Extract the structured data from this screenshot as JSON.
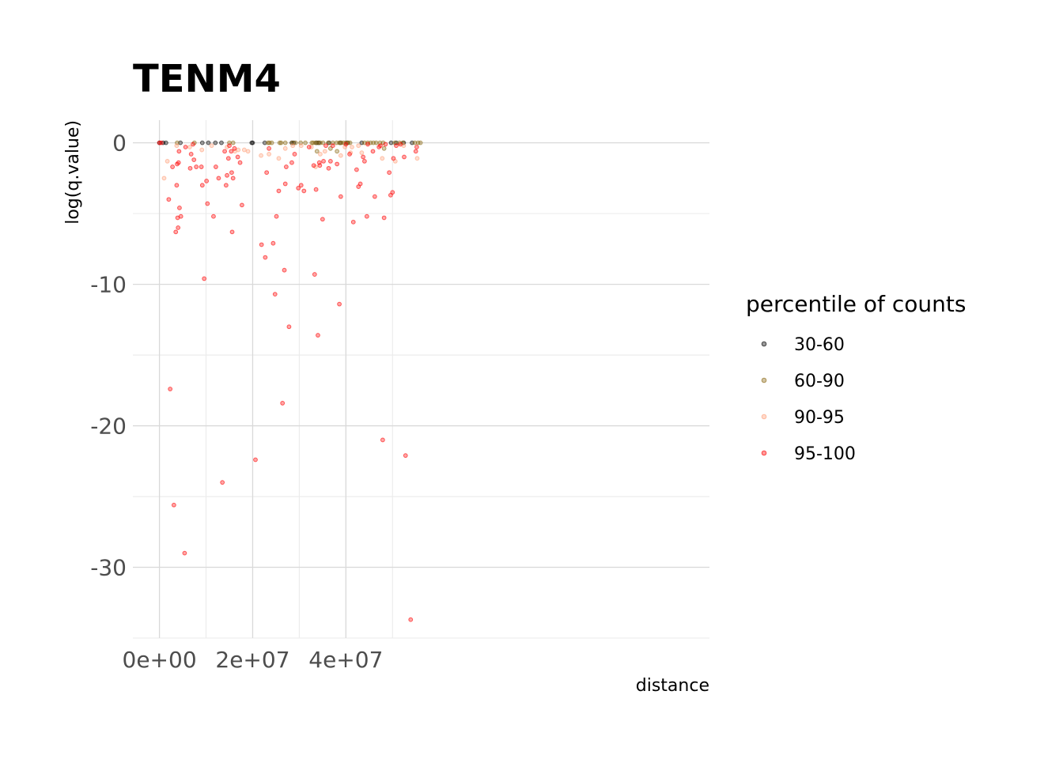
{
  "chart_data": {
    "type": "scatter",
    "title": "TENM4",
    "xlabel": "distance",
    "ylabel": "log(q.value)",
    "xlim": [
      -5700000,
      118000000
    ],
    "ylim": [
      -35,
      1.6
    ],
    "x_ticks": [
      0,
      20000000,
      40000000
    ],
    "x_tick_labels": [
      "0e+00",
      "2e+07",
      "4e+07"
    ],
    "y_ticks": [
      0,
      -10,
      -20,
      -30
    ],
    "y_tick_labels": [
      "0",
      "-10",
      "-20",
      "-30"
    ],
    "grid": true,
    "legend_position": "right",
    "legend_title": "percentile of counts",
    "series": [
      {
        "name": "30-60",
        "color": "#000000",
        "points": [
          [
            0,
            0
          ],
          [
            800000,
            0
          ],
          [
            1400000,
            0
          ],
          [
            4500000,
            0
          ],
          [
            9200000,
            0
          ],
          [
            10500000,
            0
          ],
          [
            12000000,
            0
          ],
          [
            13300000,
            0
          ],
          [
            19800000,
            0
          ],
          [
            20000000,
            0
          ],
          [
            22600000,
            0
          ],
          [
            28400000,
            0
          ],
          [
            28800000,
            0
          ],
          [
            33700000,
            0
          ],
          [
            34200000,
            0
          ],
          [
            36400000,
            0
          ],
          [
            38800000,
            0
          ],
          [
            40300000,
            0
          ],
          [
            43400000,
            0
          ],
          [
            49700000,
            0
          ],
          [
            50800000,
            0
          ],
          [
            52400000,
            0
          ],
          [
            54200000,
            0
          ]
        ]
      },
      {
        "name": "60-90",
        "color": "#8b6914",
        "points": [
          [
            3800000,
            0
          ],
          [
            7500000,
            0
          ],
          [
            15000000,
            0
          ],
          [
            15800000,
            0
          ],
          [
            23300000,
            0
          ],
          [
            23600000,
            0
          ],
          [
            24100000,
            0
          ],
          [
            25800000,
            0
          ],
          [
            26100000,
            0
          ],
          [
            27000000,
            0
          ],
          [
            28500000,
            0
          ],
          [
            29200000,
            0
          ],
          [
            30300000,
            0
          ],
          [
            31300000,
            0
          ],
          [
            32700000,
            0
          ],
          [
            33000000,
            0
          ],
          [
            33500000,
            0
          ],
          [
            34000000,
            0
          ],
          [
            34500000,
            0
          ],
          [
            35100000,
            0
          ],
          [
            36200000,
            0
          ],
          [
            37200000,
            0
          ],
          [
            38000000,
            0
          ],
          [
            38600000,
            0
          ],
          [
            39000000,
            0
          ],
          [
            39500000,
            0
          ],
          [
            40000000,
            0
          ],
          [
            40500000,
            0
          ],
          [
            40900000,
            0
          ],
          [
            44000000,
            0
          ],
          [
            44700000,
            0
          ],
          [
            45300000,
            0
          ],
          [
            45900000,
            0
          ],
          [
            46500000,
            0
          ],
          [
            47300000,
            0
          ],
          [
            48000000,
            0
          ],
          [
            50500000,
            0
          ],
          [
            51500000,
            0
          ],
          [
            52200000,
            0
          ],
          [
            54800000,
            0
          ],
          [
            55500000,
            0
          ],
          [
            56000000,
            0
          ],
          [
            33800000,
            -0.6
          ],
          [
            36700000,
            -0.4
          ],
          [
            38100000,
            -0.6
          ],
          [
            48200000,
            -0.4
          ]
        ]
      },
      {
        "name": "90-95",
        "color": "#ffa07a",
        "points": [
          [
            1000000,
            -2.5
          ],
          [
            1700000,
            -1.3
          ],
          [
            3700000,
            -0.2
          ],
          [
            6500000,
            -0.3
          ],
          [
            9100000,
            -0.5
          ],
          [
            11200000,
            -0.2
          ],
          [
            14500000,
            -0.3
          ],
          [
            16200000,
            -0.6
          ],
          [
            16900000,
            -0.5
          ],
          [
            18200000,
            -0.5
          ],
          [
            19000000,
            -0.6
          ],
          [
            21800000,
            -0.9
          ],
          [
            23500000,
            -0.8
          ],
          [
            25600000,
            -1.1
          ],
          [
            27000000,
            -0.4
          ],
          [
            28600000,
            -0.2
          ],
          [
            30400000,
            -0.2
          ],
          [
            32600000,
            -0.3
          ],
          [
            33500000,
            -1.7
          ],
          [
            34500000,
            -0.8
          ],
          [
            35500000,
            -0.6
          ],
          [
            38900000,
            -0.9
          ],
          [
            39800000,
            -0.3
          ],
          [
            41000000,
            -0.7
          ],
          [
            41300000,
            -0.3
          ],
          [
            42700000,
            -0.2
          ],
          [
            43400000,
            -0.7
          ],
          [
            47800000,
            -1.1
          ],
          [
            50600000,
            -1.3
          ],
          [
            52400000,
            -0.2
          ],
          [
            55300000,
            -1.1
          ]
        ]
      },
      {
        "name": "95-100",
        "color": "#ff0000",
        "points": [
          [
            0,
            0
          ],
          [
            400000,
            0
          ],
          [
            2000000,
            -4
          ],
          [
            2300000,
            -17.4
          ],
          [
            2800000,
            -1.7
          ],
          [
            3100000,
            -25.6
          ],
          [
            3500000,
            -6.3
          ],
          [
            3700000,
            -3.0
          ],
          [
            3800000,
            -1.5
          ],
          [
            3900000,
            -5.3
          ],
          [
            4000000,
            -6.0
          ],
          [
            4200000,
            -0.6
          ],
          [
            4300000,
            -4.6
          ],
          [
            4600000,
            -5.2
          ],
          [
            4100000,
            -1.4
          ],
          [
            5400000,
            -29.0
          ],
          [
            5600000,
            -0.3
          ],
          [
            6600000,
            -1.8
          ],
          [
            6800000,
            -0.8
          ],
          [
            7200000,
            -0.1
          ],
          [
            7400000,
            -1.2
          ],
          [
            7900000,
            -1.7
          ],
          [
            9000000,
            -1.7
          ],
          [
            9200000,
            -3.0
          ],
          [
            9600000,
            -9.6
          ],
          [
            10100000,
            -2.7
          ],
          [
            10300000,
            -4.3
          ],
          [
            11600000,
            -5.2
          ],
          [
            12100000,
            -1.7
          ],
          [
            12700000,
            -2.5
          ],
          [
            13500000,
            -24.0
          ],
          [
            14000000,
            -0.6
          ],
          [
            14300000,
            -3.0
          ],
          [
            14500000,
            -2.3
          ],
          [
            14800000,
            -1.1
          ],
          [
            15000000,
            -0.2
          ],
          [
            15400000,
            -0.6
          ],
          [
            15500000,
            -2.1
          ],
          [
            15600000,
            -6.3
          ],
          [
            15800000,
            -2.5
          ],
          [
            16100000,
            -0.4
          ],
          [
            16800000,
            -1.0
          ],
          [
            17300000,
            -1.4
          ],
          [
            17700000,
            -4.4
          ],
          [
            20600000,
            -22.4
          ],
          [
            21900000,
            -7.2
          ],
          [
            22700000,
            -8.1
          ],
          [
            23000000,
            -2.1
          ],
          [
            23500000,
            -0.4
          ],
          [
            24400000,
            -7.1
          ],
          [
            24800000,
            -10.7
          ],
          [
            25100000,
            -5.2
          ],
          [
            25600000,
            -3.4
          ],
          [
            26400000,
            -18.4
          ],
          [
            26800000,
            -9.0
          ],
          [
            27000000,
            -2.9
          ],
          [
            27200000,
            -1.7
          ],
          [
            27800000,
            -13.0
          ],
          [
            28400000,
            -1.4
          ],
          [
            29000000,
            -0.8
          ],
          [
            29800000,
            -3.2
          ],
          [
            30400000,
            -3.0
          ],
          [
            31000000,
            -3.4
          ],
          [
            32100000,
            -0.3
          ],
          [
            33100000,
            -1.6
          ],
          [
            33300000,
            -9.3
          ],
          [
            33600000,
            -3.3
          ],
          [
            34000000,
            -13.6
          ],
          [
            34300000,
            -1.4
          ],
          [
            34400000,
            -1.6
          ],
          [
            35000000,
            -5.4
          ],
          [
            35200000,
            -1.3
          ],
          [
            35700000,
            -0.2
          ],
          [
            36300000,
            -1.8
          ],
          [
            36700000,
            -1.3
          ],
          [
            37200000,
            -0.2
          ],
          [
            38100000,
            -1.5
          ],
          [
            38600000,
            -11.4
          ],
          [
            38900000,
            -3.8
          ],
          [
            40000000,
            -0.1
          ],
          [
            40800000,
            -0.8
          ],
          [
            41600000,
            -5.6
          ],
          [
            42300000,
            -1.9
          ],
          [
            42700000,
            -3.1
          ],
          [
            43100000,
            -2.9
          ],
          [
            43700000,
            -1.0
          ],
          [
            44000000,
            -1.3
          ],
          [
            44700000,
            -0.1
          ],
          [
            44500000,
            -5.2
          ],
          [
            45800000,
            -0.6
          ],
          [
            46200000,
            -3.8
          ],
          [
            47100000,
            -0.3
          ],
          [
            47400000,
            -0.2
          ],
          [
            47900000,
            -21.0
          ],
          [
            48200000,
            -5.3
          ],
          [
            48500000,
            -0.1
          ],
          [
            49300000,
            -2.1
          ],
          [
            49600000,
            -3.7
          ],
          [
            50000000,
            -3.5
          ],
          [
            50200000,
            -1.1
          ],
          [
            50800000,
            -0.2
          ],
          [
            51700000,
            -0.1
          ],
          [
            52500000,
            -1.0
          ],
          [
            52800000,
            -22.1
          ],
          [
            53900000,
            -33.7
          ],
          [
            55000000,
            -0.6
          ],
          [
            55200000,
            -0.3
          ]
        ]
      }
    ]
  }
}
